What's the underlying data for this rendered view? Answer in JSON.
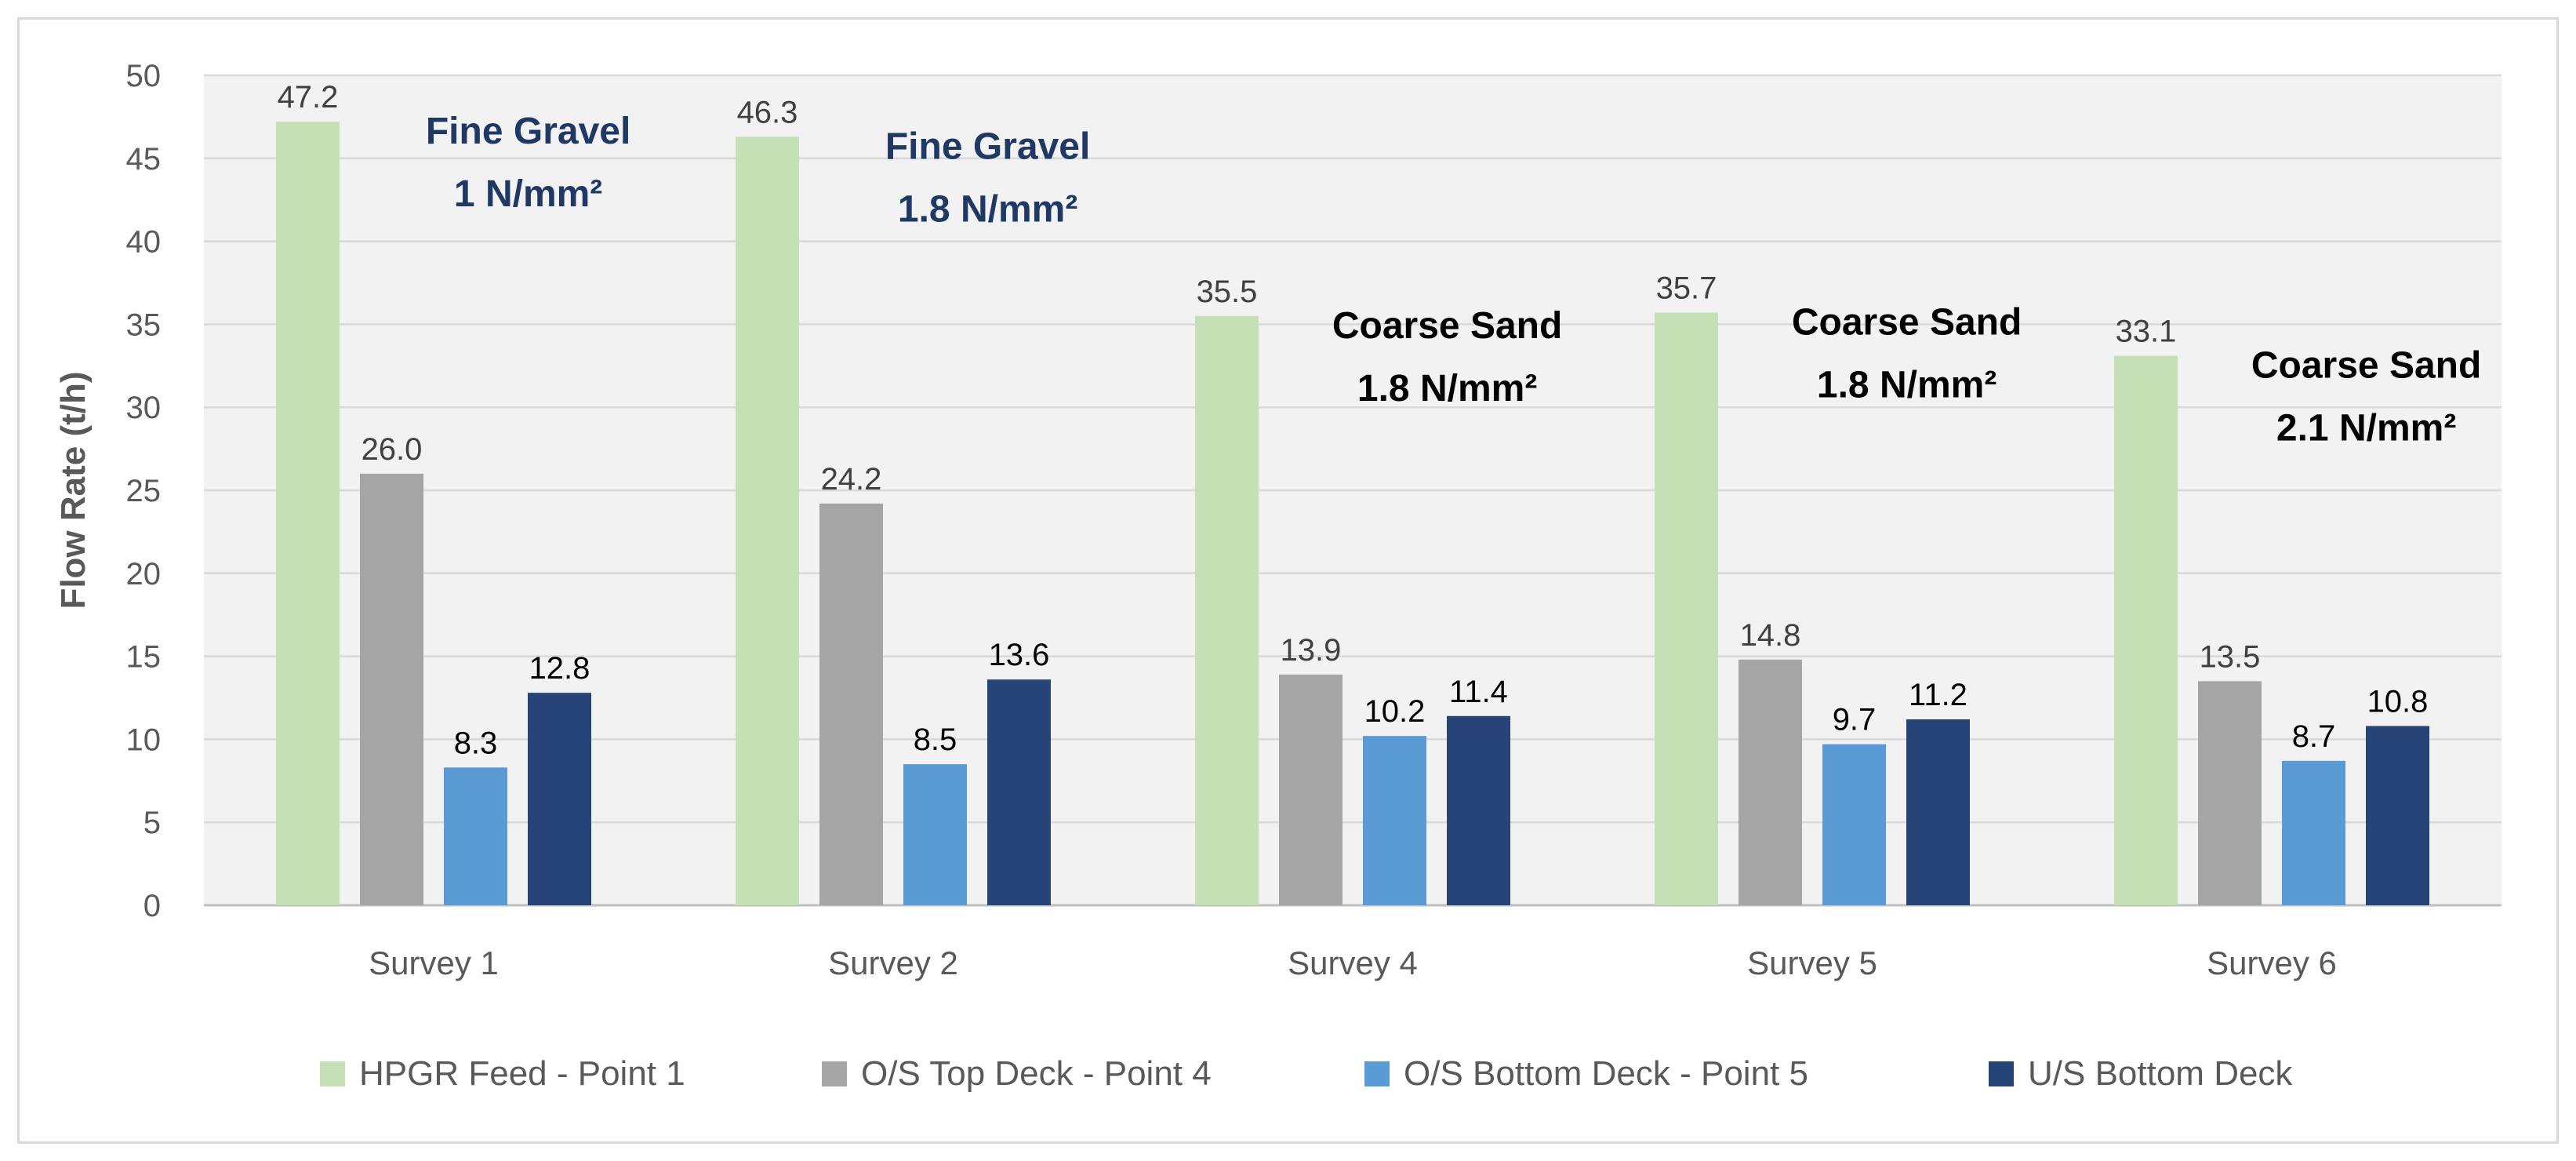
{
  "chart_data": {
    "type": "bar",
    "title": "",
    "xlabel": "",
    "ylabel": "Flow Rate (t/h)",
    "ylim": [
      0,
      50
    ],
    "yticks": [
      0,
      5,
      10,
      15,
      20,
      25,
      30,
      35,
      40,
      45,
      50
    ],
    "grid": true,
    "legend_position": "bottom",
    "categories": [
      "Survey 1",
      "Survey 2",
      "Survey 4",
      "Survey 5",
      "Survey 6"
    ],
    "series": [
      {
        "name": "HPGR Feed - Point 1",
        "color": "#c5e0b4",
        "values": [
          47.2,
          46.3,
          35.5,
          35.7,
          33.1
        ],
        "labels": [
          "47.2",
          "46.3",
          "35.5",
          "35.7",
          "33.1"
        ]
      },
      {
        "name": "O/S Top Deck - Point 4",
        "color": "#a5a5a5",
        "values": [
          26.0,
          24.2,
          13.9,
          14.8,
          13.5
        ],
        "labels": [
          "26.0",
          "24.2",
          "13.9",
          "14.8",
          "13.5"
        ]
      },
      {
        "name": "O/S Bottom Deck - Point 5",
        "color": "#5b9bd5",
        "values": [
          8.3,
          8.5,
          10.2,
          9.7,
          8.7
        ],
        "labels": [
          "8.3",
          "8.5",
          "10.2",
          "9.7",
          "8.7"
        ]
      },
      {
        "name": "U/S Bottom Deck",
        "color": "#264478",
        "values": [
          12.8,
          13.6,
          11.4,
          11.2,
          10.8
        ],
        "labels": [
          "12.8",
          "13.6",
          "11.4",
          "11.2",
          "10.8"
        ]
      }
    ],
    "annotations": [
      {
        "category": "Survey 1",
        "line1": "Fine Gravel",
        "line2": "1 N/mm²",
        "color": "#1f3864"
      },
      {
        "category": "Survey 2",
        "line1": "Fine Gravel",
        "line2": "1.8 N/mm²",
        "color": "#1f3864"
      },
      {
        "category": "Survey 4",
        "line1": "Coarse Sand",
        "line2": "1.8 N/mm²",
        "color": "#000000"
      },
      {
        "category": "Survey 5",
        "line1": "Coarse Sand",
        "line2": "1.8 N/mm²",
        "color": "#000000"
      },
      {
        "category": "Survey 6",
        "line1": "Coarse Sand",
        "line2": "2.1 N/mm²",
        "color": "#000000"
      }
    ]
  }
}
